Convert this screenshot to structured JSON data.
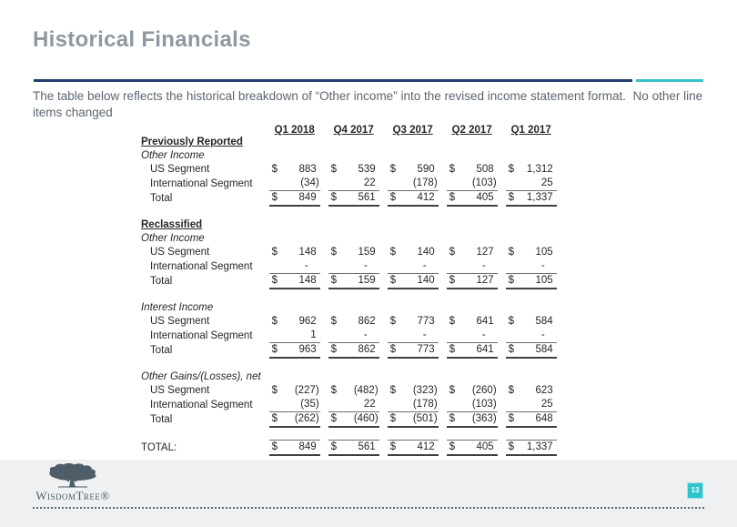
{
  "slide": {
    "title": "Historical Financials",
    "subtitle": "The table below reflects the historical breakdown of “Other income” into the revised income statement format.  No other line items changed",
    "page_number": "13"
  },
  "colors": {
    "accent_navy": "#1f3d6d",
    "accent_teal": "#3ac0ca",
    "title_gray": "#8d98a1",
    "footer_gray": "#eef0f1",
    "page_badge_teal": "#2fc4cd",
    "logo_slate": "#4e5d68"
  },
  "footer": {
    "brand": "WisdomTree®",
    "tree_icon": "tree-icon"
  },
  "chart_data": {
    "type": "table",
    "title": "Historical Financials",
    "columns": [
      "Q1 2018",
      "Q4 2017",
      "Q3 2017",
      "Q2 2017",
      "Q1 2017"
    ],
    "rows": [
      {
        "type": "section",
        "label": "Previously Reported"
      },
      {
        "type": "group",
        "label": "Other Income"
      },
      {
        "type": "data",
        "label": "US Segment",
        "dollar": true,
        "border": "",
        "values": [
          "883",
          "539",
          "590",
          "508",
          "1,312"
        ]
      },
      {
        "type": "data",
        "label": "International Segment",
        "dollar": false,
        "border": "u1",
        "values": [
          "(34)",
          "22",
          "(178)",
          "(103)",
          "25"
        ]
      },
      {
        "type": "data",
        "label": "Total",
        "dollar": true,
        "border": "u2",
        "values": [
          "849",
          "561",
          "412",
          "405",
          "1,337"
        ]
      },
      {
        "type": "spacer"
      },
      {
        "type": "section",
        "label": "Reclassified"
      },
      {
        "type": "group",
        "label": "Other Income"
      },
      {
        "type": "data",
        "label": "US Segment",
        "dollar": true,
        "border": "",
        "values": [
          "148",
          "159",
          "140",
          "127",
          "105"
        ]
      },
      {
        "type": "data",
        "label": "International Segment",
        "dollar": false,
        "border": "u1",
        "values": [
          "-",
          "-",
          "-",
          "-",
          "-"
        ]
      },
      {
        "type": "data",
        "label": "Total",
        "dollar": true,
        "border": "u2",
        "values": [
          "148",
          "159",
          "140",
          "127",
          "105"
        ]
      },
      {
        "type": "spacer"
      },
      {
        "type": "group",
        "label": "Interest Income"
      },
      {
        "type": "data",
        "label": "US Segment",
        "dollar": true,
        "border": "",
        "values": [
          "962",
          "862",
          "773",
          "641",
          "584"
        ]
      },
      {
        "type": "data",
        "label": "International Segment",
        "dollar": false,
        "border": "u1",
        "values": [
          "1",
          "-",
          "-",
          "-",
          "-"
        ]
      },
      {
        "type": "data",
        "label": "Total",
        "dollar": true,
        "border": "u2",
        "values": [
          "963",
          "862",
          "773",
          "641",
          "584"
        ]
      },
      {
        "type": "spacer"
      },
      {
        "type": "group",
        "label": "Other Gains/(Losses), net"
      },
      {
        "type": "data",
        "label": "US Segment",
        "dollar": true,
        "border": "",
        "values": [
          "(227)",
          "(482)",
          "(323)",
          "(260)",
          "623"
        ]
      },
      {
        "type": "data",
        "label": "International Segment",
        "dollar": false,
        "border": "u1",
        "values": [
          "(35)",
          "22",
          "(178)",
          "(103)",
          "25"
        ]
      },
      {
        "type": "data",
        "label": "Total",
        "dollar": true,
        "border": "u2",
        "values": [
          "(262)",
          "(460)",
          "(501)",
          "(363)",
          "648"
        ]
      },
      {
        "type": "spacer"
      },
      {
        "type": "data",
        "label": "TOTAL:",
        "grand": true,
        "dollar": true,
        "border": "t1 u2",
        "values": [
          "849",
          "561",
          "412",
          "405",
          "1,337"
        ]
      }
    ]
  }
}
